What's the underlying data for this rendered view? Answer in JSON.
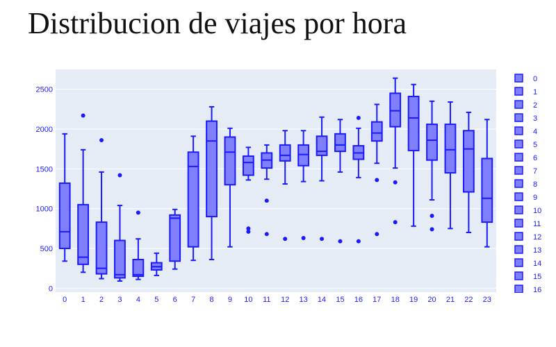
{
  "chart_data": {
    "type": "box",
    "title": "Distribucion de viajes por hora",
    "xlabel": "",
    "ylabel": "",
    "ylim": [
      -50,
      2750
    ],
    "yticks": [
      0,
      500,
      1000,
      1500,
      2000,
      2500
    ],
    "grid": true,
    "legend_position": "right",
    "colors": {
      "box_fill": "#8080ff",
      "box_line": "#1a1aff",
      "plot_bg": "#e5ecf6",
      "grid": "#ffffff",
      "text": "#1a1aff"
    },
    "categories": [
      "0",
      "1",
      "2",
      "3",
      "4",
      "5",
      "6",
      "7",
      "8",
      "9",
      "10",
      "11",
      "12",
      "13",
      "14",
      "15",
      "16",
      "17",
      "18",
      "19",
      "20",
      "21",
      "22",
      "23"
    ],
    "legend": [
      "0",
      "1",
      "2",
      "3",
      "4",
      "5",
      "6",
      "7",
      "8",
      "9",
      "10",
      "11",
      "12",
      "13",
      "14",
      "15",
      "16"
    ],
    "boxes": [
      {
        "cat": "0",
        "min": 340,
        "q1": 500,
        "median": 710,
        "q3": 1320,
        "max": 1940,
        "outliers": []
      },
      {
        "cat": "1",
        "min": 200,
        "q1": 300,
        "median": 390,
        "q3": 1050,
        "max": 1740,
        "outliers": [
          2170
        ]
      },
      {
        "cat": "2",
        "min": 120,
        "q1": 180,
        "median": 250,
        "q3": 830,
        "max": 1460,
        "outliers": [
          1860
        ]
      },
      {
        "cat": "3",
        "min": 90,
        "q1": 130,
        "median": 170,
        "q3": 600,
        "max": 1040,
        "outliers": [
          1420
        ]
      },
      {
        "cat": "4",
        "min": 110,
        "q1": 150,
        "median": 170,
        "q3": 360,
        "max": 620,
        "outliers": [
          950
        ]
      },
      {
        "cat": "5",
        "min": 160,
        "q1": 230,
        "median": 270,
        "q3": 320,
        "max": 440,
        "outliers": []
      },
      {
        "cat": "6",
        "min": 240,
        "q1": 340,
        "median": 880,
        "q3": 920,
        "max": 990,
        "outliers": []
      },
      {
        "cat": "7",
        "min": 350,
        "q1": 520,
        "median": 1530,
        "q3": 1710,
        "max": 1910,
        "outliers": []
      },
      {
        "cat": "8",
        "min": 360,
        "q1": 900,
        "median": 1850,
        "q3": 2100,
        "max": 2280,
        "outliers": []
      },
      {
        "cat": "9",
        "min": 520,
        "q1": 1300,
        "median": 1710,
        "q3": 1900,
        "max": 2010,
        "outliers": []
      },
      {
        "cat": "10",
        "min": 1360,
        "q1": 1420,
        "median": 1580,
        "q3": 1660,
        "max": 1770,
        "outliers": [
          750,
          710
        ]
      },
      {
        "cat": "11",
        "min": 1370,
        "q1": 1510,
        "median": 1610,
        "q3": 1700,
        "max": 1800,
        "outliers": [
          1100,
          680
        ]
      },
      {
        "cat": "12",
        "min": 1310,
        "q1": 1600,
        "median": 1670,
        "q3": 1800,
        "max": 1980,
        "outliers": [
          620
        ]
      },
      {
        "cat": "13",
        "min": 1340,
        "q1": 1540,
        "median": 1680,
        "q3": 1800,
        "max": 1980,
        "outliers": [
          630
        ]
      },
      {
        "cat": "14",
        "min": 1350,
        "q1": 1670,
        "median": 1720,
        "q3": 1910,
        "max": 2150,
        "outliers": [
          620
        ]
      },
      {
        "cat": "15",
        "min": 1460,
        "q1": 1720,
        "median": 1800,
        "q3": 1940,
        "max": 2120,
        "outliers": [
          590
        ]
      },
      {
        "cat": "16",
        "min": 1390,
        "q1": 1620,
        "median": 1700,
        "q3": 1790,
        "max": 2010,
        "outliers": [
          2140,
          590
        ]
      },
      {
        "cat": "17",
        "min": 1570,
        "q1": 1850,
        "median": 1950,
        "q3": 2090,
        "max": 2310,
        "outliers": [
          1360,
          680
        ]
      },
      {
        "cat": "18",
        "min": 1510,
        "q1": 2030,
        "median": 2230,
        "q3": 2450,
        "max": 2640,
        "outliers": [
          1330,
          830
        ]
      },
      {
        "cat": "19",
        "min": 780,
        "q1": 1730,
        "median": 2140,
        "q3": 2410,
        "max": 2560,
        "outliers": []
      },
      {
        "cat": "20",
        "min": 1110,
        "q1": 1610,
        "median": 1860,
        "q3": 2060,
        "max": 2350,
        "outliers": [
          910,
          740
        ]
      },
      {
        "cat": "21",
        "min": 750,
        "q1": 1450,
        "median": 1740,
        "q3": 2060,
        "max": 2340,
        "outliers": []
      },
      {
        "cat": "22",
        "min": 700,
        "q1": 1210,
        "median": 1750,
        "q3": 1980,
        "max": 2210,
        "outliers": []
      },
      {
        "cat": "23",
        "min": 520,
        "q1": 830,
        "median": 1130,
        "q3": 1630,
        "max": 2120,
        "outliers": []
      }
    ]
  }
}
